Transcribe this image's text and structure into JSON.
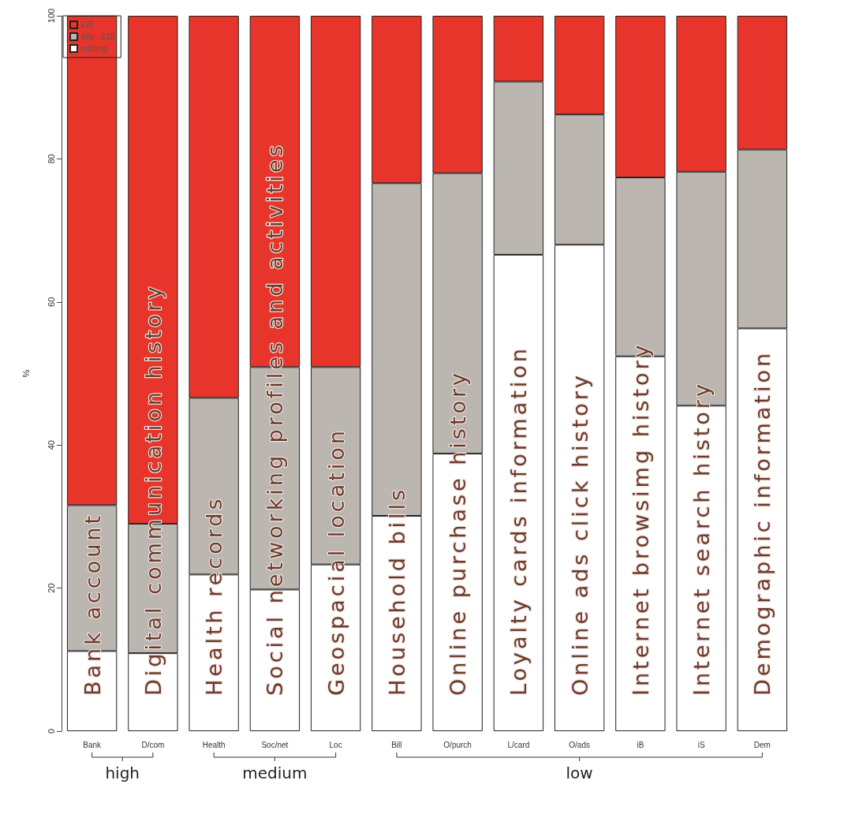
{
  "chart_data": {
    "type": "bar",
    "stacked": true,
    "ylabel": "%",
    "categories": [
      "Bank",
      "D/com",
      "Health",
      "Soc/net",
      "Loc",
      "Bill",
      "O/purch",
      "L/card",
      "O/ads",
      "iB",
      "iS",
      "Dem"
    ],
    "series": [
      {
        "name": "nothing",
        "color": "#ffffff",
        "values": [
          11.2,
          10.9,
          21.9,
          19.8,
          23.3,
          30.1,
          38.8,
          66.6,
          68.0,
          52.4,
          45.5,
          56.3
        ]
      },
      {
        "name": "50p - £15",
        "color": "#bcb6b0",
        "values": [
          20.4,
          18.1,
          24.7,
          31.1,
          27.6,
          46.5,
          39.2,
          24.2,
          18.2,
          25.0,
          32.7,
          25.0
        ]
      },
      {
        "name": "£20",
        "color": "#e8352b",
        "values": [
          68.4,
          71.0,
          53.4,
          49.1,
          49.1,
          23.4,
          22.0,
          9.2,
          13.8,
          22.6,
          21.8,
          18.7
        ]
      }
    ],
    "ylim": [
      0,
      100
    ],
    "yticks": [
      0,
      20,
      40,
      60,
      80,
      100
    ],
    "grid": false,
    "legend": "top left",
    "annotations": [
      "Bank account",
      "Digital communication history",
      "Health records",
      "Social networking profiles and activities",
      "Geospacial location",
      "Household bills",
      "Online purchase history",
      "Loyalty cards information",
      "Online ads click history",
      "Internet browsimg history",
      "Internet search history",
      "Demographic information",
      "high",
      "medium",
      "low"
    ]
  }
}
